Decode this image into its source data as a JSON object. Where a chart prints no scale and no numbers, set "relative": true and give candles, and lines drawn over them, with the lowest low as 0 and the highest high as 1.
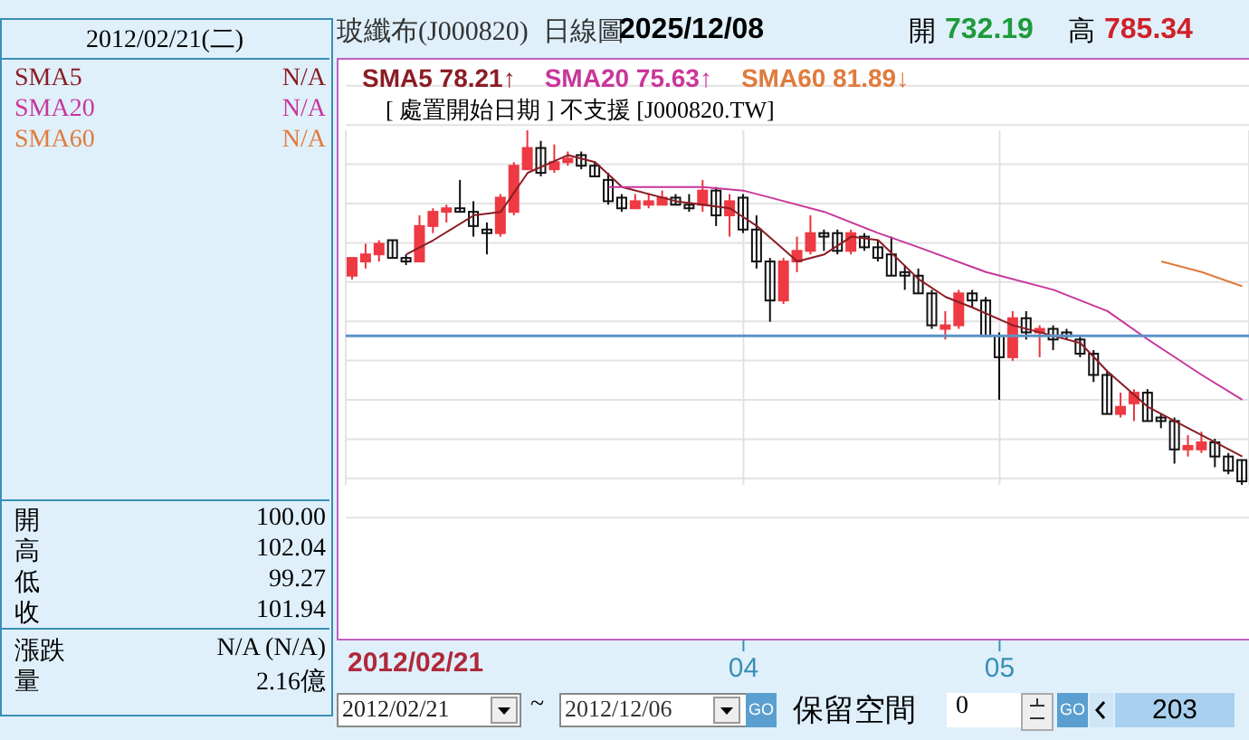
{
  "chart_data": {
    "type": "candlestick",
    "title": "玻纖布(J000820)",
    "subtitle": "日線圖",
    "relative": true,
    "grid": true,
    "legend": "top left",
    "marker": "none",
    "categories": [
      null,
      null,
      null,
      null,
      null,
      null,
      null,
      null,
      null,
      null,
      null,
      null,
      null,
      null,
      null,
      null,
      null,
      null,
      null,
      null,
      null,
      null,
      null,
      null,
      null,
      null,
      null,
      null,
      null,
      "04",
      null,
      null,
      null,
      null,
      null,
      null,
      null,
      null,
      null,
      null,
      null,
      null,
      null,
      null,
      null,
      null,
      null,
      null,
      "05",
      null,
      null,
      null,
      null,
      null,
      null,
      null,
      null,
      null,
      null,
      null,
      null,
      null,
      null,
      null,
      null,
      null,
      null
    ],
    "ohlc": [
      [
        0.59,
        0.64,
        0.58,
        0.64
      ],
      [
        0.63,
        0.68,
        0.61,
        0.65
      ],
      [
        0.65,
        0.69,
        0.63,
        0.68
      ],
      [
        0.69,
        0.69,
        0.64,
        0.64
      ],
      [
        0.64,
        0.65,
        0.62,
        0.63
      ],
      [
        0.63,
        0.76,
        0.63,
        0.73
      ],
      [
        0.73,
        0.78,
        0.71,
        0.77
      ],
      [
        0.77,
        0.79,
        0.74,
        0.78
      ],
      [
        0.78,
        0.86,
        0.77,
        0.77
      ],
      [
        0.77,
        0.8,
        0.7,
        0.73
      ],
      [
        0.72,
        0.74,
        0.65,
        0.71
      ],
      [
        0.71,
        0.82,
        0.7,
        0.81
      ],
      [
        0.77,
        0.91,
        0.76,
        0.9
      ],
      [
        0.89,
        1,
        0.89,
        0.95
      ],
      [
        0.95,
        0.97,
        0.87,
        0.88
      ],
      [
        0.89,
        0.96,
        0.88,
        0.91
      ],
      [
        0.91,
        0.94,
        0.9,
        0.92
      ],
      [
        0.93,
        0.94,
        0.89,
        0.9
      ],
      [
        0.9,
        0.91,
        0.87,
        0.87
      ],
      [
        0.86,
        0.88,
        0.79,
        0.8
      ],
      [
        0.81,
        0.82,
        0.77,
        0.78
      ],
      [
        0.78,
        0.82,
        0.78,
        0.8
      ],
      [
        0.79,
        0.82,
        0.78,
        0.8
      ],
      [
        0.79,
        0.83,
        0.79,
        0.81
      ],
      [
        0.81,
        0.82,
        0.79,
        0.79
      ],
      [
        0.79,
        0.82,
        0.77,
        0.78
      ],
      [
        0.79,
        0.86,
        0.77,
        0.83
      ],
      [
        0.83,
        0.84,
        0.73,
        0.76
      ],
      [
        0.76,
        0.82,
        0.7,
        0.8
      ],
      [
        0.81,
        0.82,
        0.71,
        0.72
      ],
      [
        0.72,
        0.76,
        0.61,
        0.63
      ],
      [
        0.63,
        0.64,
        0.46,
        0.52
      ],
      [
        0.52,
        0.64,
        0.51,
        0.63
      ],
      [
        0.63,
        0.7,
        0.6,
        0.66
      ],
      [
        0.66,
        0.76,
        0.65,
        0.71
      ],
      [
        0.71,
        0.72,
        0.66,
        0.7
      ],
      [
        0.71,
        0.72,
        0.65,
        0.66
      ],
      [
        0.66,
        0.72,
        0.65,
        0.71
      ],
      [
        0.7,
        0.71,
        0.66,
        0.67
      ],
      [
        0.67,
        0.69,
        0.63,
        0.64
      ],
      [
        0.65,
        0.7,
        0.59,
        0.59
      ],
      [
        0.6,
        0.62,
        0.55,
        0.59
      ],
      [
        0.59,
        0.61,
        0.54,
        0.54
      ],
      [
        0.54,
        0.55,
        0.44,
        0.45
      ],
      [
        0.44,
        0.49,
        0.41,
        0.45
      ],
      [
        0.45,
        0.55,
        0.44,
        0.54
      ],
      [
        0.54,
        0.55,
        0.5,
        0.52
      ],
      [
        0.52,
        0.53,
        0.42,
        0.42
      ],
      [
        0.42,
        0.43,
        0.24,
        0.36
      ],
      [
        0.36,
        0.49,
        0.35,
        0.47
      ],
      [
        0.47,
        0.49,
        0.41,
        0.43
      ],
      [
        0.43,
        0.45,
        0.36,
        0.44
      ],
      [
        0.44,
        0.45,
        0.38,
        0.41
      ],
      [
        0.43,
        0.44,
        0.41,
        0.42
      ],
      [
        0.41,
        0.42,
        0.36,
        0.37
      ],
      [
        0.37,
        0.38,
        0.29,
        0.31
      ],
      [
        0.31,
        0.32,
        0.2,
        0.2
      ],
      [
        0.2,
        0.26,
        0.19,
        0.22
      ],
      [
        0.23,
        0.27,
        0.18,
        0.26
      ],
      [
        0.26,
        0.27,
        0.18,
        0.18
      ],
      [
        0.19,
        0.2,
        0.16,
        0.18
      ],
      [
        0.18,
        0.19,
        0.06,
        0.1
      ],
      [
        0.1,
        0.14,
        0.08,
        0.11
      ],
      [
        0.1,
        0.15,
        0.09,
        0.12
      ],
      [
        0.12,
        0.13,
        0.05,
        0.08
      ],
      [
        0.08,
        0.09,
        0.03,
        0.04
      ],
      [
        0.07,
        0.07,
        0,
        0.01
      ]
    ],
    "series": [
      {
        "name": "SMA5",
        "type": "line",
        "color": "#8b1c24",
        "values": [
          null,
          null,
          null,
          null,
          0.65,
          null,
          0.69,
          null,
          null,
          0.76,
          null,
          0.77,
          null,
          0.88,
          null,
          null,
          0.93,
          null,
          0.91,
          null,
          0.84,
          null,
          null,
          null,
          0.8,
          null,
          null,
          null,
          0.78,
          null,
          0.73,
          null,
          null,
          0.63,
          null,
          0.65,
          null,
          0.7,
          null,
          0.69,
          null,
          null,
          0.58,
          null,
          0.53,
          null,
          0.5,
          null,
          null,
          0.45,
          null,
          null,
          0.42,
          null,
          0.4,
          null,
          0.32,
          null,
          null,
          0.22,
          null,
          null,
          0.16,
          null,
          0.12,
          null,
          0.08
        ]
      },
      {
        "name": "SMA20",
        "type": "line",
        "color": "#c8369a",
        "values": [
          null,
          null,
          null,
          null,
          null,
          null,
          null,
          null,
          null,
          null,
          null,
          null,
          null,
          null,
          null,
          null,
          null,
          null,
          null,
          0.84,
          null,
          null,
          null,
          null,
          null,
          null,
          0.84,
          null,
          null,
          0.83,
          null,
          null,
          0.8,
          null,
          null,
          0.77,
          null,
          null,
          null,
          0.71,
          null,
          null,
          0.67,
          null,
          null,
          null,
          null,
          0.6,
          null,
          null,
          null,
          null,
          0.55,
          null,
          null,
          null,
          0.49,
          null,
          null,
          0.41,
          null,
          null,
          null,
          0.31,
          null,
          null,
          0.24
        ]
      },
      {
        "name": "SMA60",
        "type": "line",
        "color": "#e07b3c",
        "values": [
          null,
          null,
          null,
          null,
          null,
          null,
          null,
          null,
          null,
          null,
          null,
          null,
          null,
          null,
          null,
          null,
          null,
          null,
          null,
          null,
          null,
          null,
          null,
          null,
          null,
          null,
          null,
          null,
          null,
          null,
          null,
          null,
          null,
          null,
          null,
          null,
          null,
          null,
          null,
          null,
          null,
          null,
          null,
          null,
          null,
          null,
          null,
          null,
          null,
          null,
          null,
          null,
          null,
          null,
          null,
          null,
          null,
          null,
          null,
          null,
          0.63,
          null,
          null,
          0.6,
          null,
          null,
          0.56
        ]
      }
    ],
    "ref_lines": [
      {
        "axis": "y",
        "value": 0.42,
        "color": "#5b93c7"
      }
    ],
    "annotations": [
      "2025/12/08",
      "開",
      "732.19",
      "高",
      "785.34",
      "78.21↑",
      "75.63↑",
      "81.89↓",
      "[ 處置開始日期 ] 不支援 [J000820.TW]",
      "2012/02/21(二)",
      "N/A",
      "N/A",
      "N/A",
      "開",
      "100.00",
      "高",
      "102.04",
      "低",
      "99.27",
      "收",
      "101.94",
      "漲跌",
      "N/A (N/A)",
      "量",
      "2.16億",
      "2012/02/21",
      "~",
      "2012/12/06",
      "GO",
      "保留空間",
      "0",
      "GO",
      "203",
      "2012/02/21"
    ]
  }
}
